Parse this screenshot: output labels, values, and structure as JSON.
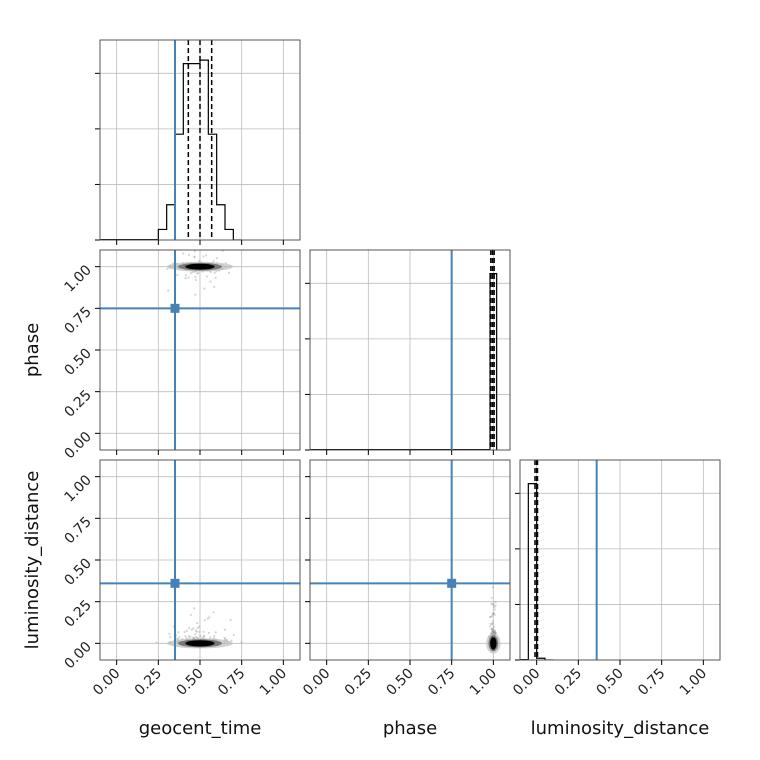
{
  "chart_data": {
    "type": "corner",
    "parameters": [
      "geocent_time",
      "phase",
      "luminosity_distance"
    ],
    "axis_labels": {
      "x": [
        "geocent_time",
        "phase",
        "luminosity_distance"
      ],
      "y": [
        "",
        "phase",
        "luminosity_distance"
      ]
    },
    "axis_range": [
      -0.1,
      1.1
    ],
    "ticks": [
      0.0,
      0.25,
      0.5,
      0.75,
      1.0
    ],
    "tick_labels": [
      "0.00",
      "0.25",
      "0.50",
      "0.75",
      "1.00"
    ],
    "grid": true,
    "truth_color": "#4682b4",
    "hist_color": "#000000",
    "truths": {
      "geocent_time": 0.35,
      "phase": 0.75,
      "luminosity_distance": 0.36
    },
    "histograms": {
      "geocent_time": {
        "bin_edges": [
          0.25,
          0.3,
          0.35,
          0.4,
          0.45,
          0.5,
          0.55,
          0.6,
          0.65,
          0.7,
          0.75
        ],
        "counts": [
          0.06,
          0.2,
          0.6,
          1.0,
          1.0,
          1.02,
          0.6,
          0.2,
          0.06,
          0.0
        ],
        "quantiles": [
          0.43,
          0.5,
          0.57
        ]
      },
      "phase": {
        "bin_edges": [
          0.98,
          1.02
        ],
        "counts": [
          1.0
        ],
        "quantiles": [
          0.985,
          0.995,
          1.005
        ]
      },
      "luminosity_distance": {
        "bin_edges": [
          -0.05,
          0.0,
          0.05,
          0.1
        ],
        "counts": [
          1.0,
          0.01,
          0.0
        ],
        "quantiles": [
          -0.01,
          0.0,
          0.005
        ]
      }
    },
    "samples_2d": [
      {
        "x": "geocent_time",
        "y": "phase",
        "center": [
          0.5,
          1.0
        ],
        "spread": [
          0.05,
          0.008
        ]
      },
      {
        "x": "geocent_time",
        "y": "luminosity_distance",
        "center": [
          0.5,
          0.0
        ],
        "spread": [
          0.05,
          0.01
        ]
      },
      {
        "x": "phase",
        "y": "luminosity_distance",
        "center": [
          1.0,
          0.0
        ],
        "spread": [
          0.005,
          0.02
        ]
      }
    ]
  }
}
